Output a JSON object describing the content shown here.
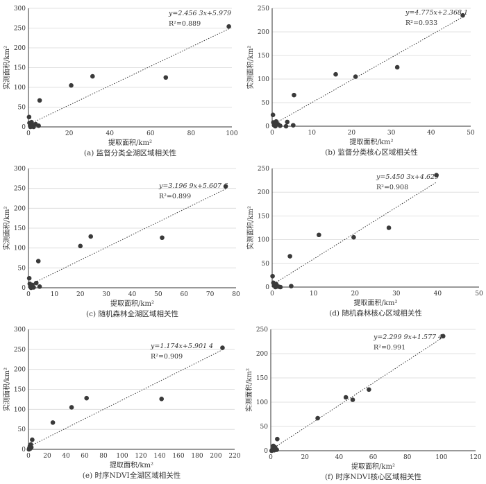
{
  "chart_data": [
    {
      "type": "scatter",
      "caption": "(a) 监督分类全湖区域相关性",
      "xlabel": "提取面积/km²",
      "ylabel": "实测面积/km²",
      "xlim": [
        0,
        100
      ],
      "xticks": [
        0,
        20,
        40,
        60,
        80,
        100
      ],
      "ylim": [
        0,
        300
      ],
      "yticks": [
        0,
        50,
        100,
        150,
        200,
        250,
        300
      ],
      "equation": "y=2.456 3x+5.979",
      "r2": "R²=0.889",
      "trendline": {
        "slope": 2.4563,
        "intercept": 5.979
      },
      "points": [
        {
          "x": 0.3,
          "y": 25
        },
        {
          "x": 0.5,
          "y": 10
        },
        {
          "x": 0.8,
          "y": 3
        },
        {
          "x": 1.0,
          "y": 0
        },
        {
          "x": 1.5,
          "y": 12
        },
        {
          "x": 2.0,
          "y": 4
        },
        {
          "x": 2.5,
          "y": 0
        },
        {
          "x": 3.5,
          "y": 7
        },
        {
          "x": 5.0,
          "y": 3
        },
        {
          "x": 5.5,
          "y": 67
        },
        {
          "x": 21,
          "y": 105
        },
        {
          "x": 31.5,
          "y": 128
        },
        {
          "x": 67.5,
          "y": 125
        },
        {
          "x": 98.5,
          "y": 254
        }
      ]
    },
    {
      "type": "scatter",
      "caption": "(b) 监督分类核心区域相关性",
      "xlabel": "提取面积/km²",
      "ylabel": "实测面积/km²",
      "xlim": [
        0,
        50
      ],
      "xticks": [
        0,
        10,
        20,
        30,
        40,
        50
      ],
      "ylim": [
        0,
        250
      ],
      "yticks": [
        0,
        50,
        100,
        150,
        200,
        250
      ],
      "equation": "y=4.775x+2.368 1",
      "r2": "R²=0.933",
      "trendline": {
        "slope": 4.775,
        "intercept": 2.3681
      },
      "points": [
        {
          "x": 0.2,
          "y": 24
        },
        {
          "x": 0.3,
          "y": 8
        },
        {
          "x": 0.5,
          "y": 2
        },
        {
          "x": 0.8,
          "y": 0
        },
        {
          "x": 1.0,
          "y": 10
        },
        {
          "x": 1.5,
          "y": 4
        },
        {
          "x": 2.0,
          "y": 1
        },
        {
          "x": 3.5,
          "y": 0
        },
        {
          "x": 3.8,
          "y": 9
        },
        {
          "x": 5.3,
          "y": 2
        },
        {
          "x": 5.5,
          "y": 66
        },
        {
          "x": 16,
          "y": 110
        },
        {
          "x": 21,
          "y": 105
        },
        {
          "x": 31.5,
          "y": 125
        },
        {
          "x": 48,
          "y": 235
        }
      ]
    },
    {
      "type": "scatter",
      "caption": "(c) 随机森林全湖区域相关性",
      "xlabel": "提取面积/km²",
      "ylabel": "实测面积/km²",
      "xlim": [
        0,
        80
      ],
      "xticks": [
        0,
        10,
        20,
        30,
        40,
        50,
        60,
        70,
        80
      ],
      "ylim": [
        0,
        300
      ],
      "yticks": [
        0,
        50,
        100,
        150,
        200,
        250,
        300
      ],
      "equation": "y=3.196 9x+5.607 6",
      "r2": "R²=0.899",
      "trendline": {
        "slope": 3.1969,
        "intercept": 5.6076
      },
      "points": [
        {
          "x": 0.3,
          "y": 24
        },
        {
          "x": 0.5,
          "y": 10
        },
        {
          "x": 0.8,
          "y": 3
        },
        {
          "x": 1.0,
          "y": 0
        },
        {
          "x": 1.5,
          "y": 7
        },
        {
          "x": 2.0,
          "y": 1
        },
        {
          "x": 3.0,
          "y": 12
        },
        {
          "x": 3.8,
          "y": 67
        },
        {
          "x": 4.3,
          "y": 3
        },
        {
          "x": 20,
          "y": 105
        },
        {
          "x": 24,
          "y": 129
        },
        {
          "x": 51.5,
          "y": 126
        },
        {
          "x": 76,
          "y": 255
        }
      ]
    },
    {
      "type": "scatter",
      "caption": "(d) 随机森林核心区域相关性",
      "xlabel": "提取面积/km²",
      "ylabel": "实测面积/km²",
      "xlim": [
        0,
        50
      ],
      "xticks": [
        0,
        10,
        20,
        30,
        40,
        50
      ],
      "ylim": [
        0,
        250
      ],
      "yticks": [
        0,
        50,
        100,
        150,
        200,
        250
      ],
      "equation": "y=5.450 3x+4.629",
      "r2": "R²=0.908",
      "trendline": {
        "slope": 5.4503,
        "intercept": 4.629
      },
      "points": [
        {
          "x": 0.1,
          "y": 23
        },
        {
          "x": 0.3,
          "y": 9
        },
        {
          "x": 0.5,
          "y": 3
        },
        {
          "x": 0.8,
          "y": 0
        },
        {
          "x": 1.0,
          "y": 6
        },
        {
          "x": 1.5,
          "y": 1
        },
        {
          "x": 2.0,
          "y": 0
        },
        {
          "x": 4.3,
          "y": 65
        },
        {
          "x": 4.6,
          "y": 2
        },
        {
          "x": 11.3,
          "y": 110
        },
        {
          "x": 19.7,
          "y": 105
        },
        {
          "x": 28.2,
          "y": 125
        },
        {
          "x": 39.7,
          "y": 236
        }
      ]
    },
    {
      "type": "scatter",
      "caption": "(e) 时序NDVI全湖区域相关性",
      "xlabel": "提取面积/km²",
      "ylabel": "实测面积/km²",
      "xlim": [
        0,
        220
      ],
      "xticks": [
        0,
        20,
        40,
        60,
        80,
        100,
        120,
        140,
        160,
        180,
        200,
        220
      ],
      "ylim": [
        0,
        300
      ],
      "yticks": [
        0,
        50,
        100,
        150,
        200,
        250,
        300
      ],
      "equation": "y=1.174x+5.901 4",
      "r2": "R²=0.909",
      "trendline": {
        "slope": 1.174,
        "intercept": 5.9014
      },
      "points": [
        {
          "x": 0.5,
          "y": 0
        },
        {
          "x": 1.0,
          "y": 3
        },
        {
          "x": 1.5,
          "y": 8
        },
        {
          "x": 2.0,
          "y": 2
        },
        {
          "x": 2.5,
          "y": 12
        },
        {
          "x": 3.0,
          "y": 5
        },
        {
          "x": 4.0,
          "y": 24
        },
        {
          "x": 26,
          "y": 67
        },
        {
          "x": 46,
          "y": 105
        },
        {
          "x": 62,
          "y": 128
        },
        {
          "x": 142,
          "y": 126
        },
        {
          "x": 207,
          "y": 254
        }
      ]
    },
    {
      "type": "scatter",
      "caption": "(f) 时序NDVI核心区域相关性",
      "xlabel": "提取面积/km²",
      "ylabel": "实测面积/km²",
      "xlim": [
        0,
        120
      ],
      "xticks": [
        0,
        20,
        40,
        60,
        80,
        100,
        120
      ],
      "ylim": [
        0,
        250
      ],
      "yticks": [
        0,
        50,
        100,
        150,
        200,
        250
      ],
      "equation": "y=2.299 9x+1.577 4",
      "r2": "R²=0.991",
      "trendline": {
        "slope": 2.2999,
        "intercept": 1.5774
      },
      "points": [
        {
          "x": 0.5,
          "y": 0
        },
        {
          "x": 1.0,
          "y": 3
        },
        {
          "x": 1.5,
          "y": 10
        },
        {
          "x": 2.0,
          "y": 1
        },
        {
          "x": 2.5,
          "y": 7
        },
        {
          "x": 3.5,
          "y": 2
        },
        {
          "x": 3.8,
          "y": 24
        },
        {
          "x": 27.5,
          "y": 67
        },
        {
          "x": 44,
          "y": 110
        },
        {
          "x": 48,
          "y": 105
        },
        {
          "x": 57.5,
          "y": 126
        },
        {
          "x": 101,
          "y": 236
        }
      ]
    }
  ],
  "colors": {
    "point": "#3a3a3a",
    "trendline": "#333333",
    "axis": "#333333",
    "grid": "#d9d9d9",
    "text": "#333333"
  }
}
